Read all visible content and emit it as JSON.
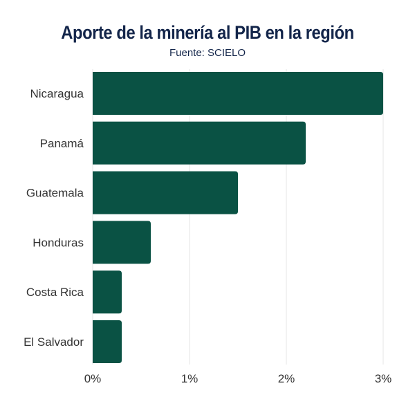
{
  "chart_data": {
    "type": "bar",
    "orientation": "horizontal",
    "title": "Aporte de la minería al PIB en la región",
    "subtitle": "Fuente: SCIELO",
    "categories": [
      "Nicaragua",
      "Panamá",
      "Guatemala",
      "Honduras",
      "Costa Rica",
      "El Salvador"
    ],
    "values": [
      3.0,
      2.2,
      1.5,
      0.6,
      0.3,
      0.3
    ],
    "xlim": [
      0,
      3
    ],
    "xticks": [
      0,
      1,
      2,
      3
    ],
    "xtick_labels": [
      "0%",
      "1%",
      "2%",
      "3%"
    ],
    "xlabel": "",
    "ylabel": "",
    "grid": true,
    "bar_color": "#0a5244"
  }
}
